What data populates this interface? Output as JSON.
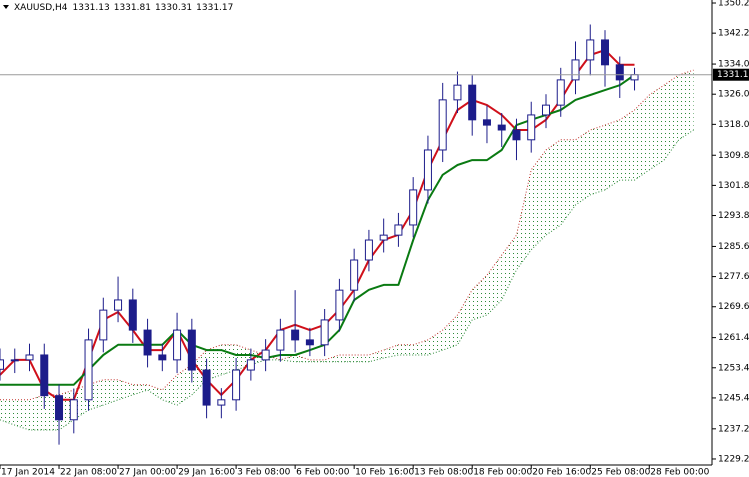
{
  "chart_data": {
    "type": "candlestick",
    "title": "XAUUSD,H4",
    "header_values": [
      1331.13,
      1331.81,
      1330.31,
      1331.17
    ],
    "last_price": 1331.17,
    "xlim": [
      0,
      193
    ],
    "ylim": [
      1227.6,
      1351
    ],
    "yticks": [
      {
        "value": 1350.2,
        "label": "1350.20"
      },
      {
        "value": 1342.2,
        "label": "1342.20"
      },
      {
        "value": 1334,
        "label": "1334.00"
      },
      {
        "value": 1326,
        "label": "1326.00"
      },
      {
        "value": 1318,
        "label": "1318.00"
      },
      {
        "value": 1309.8,
        "label": "1309.80"
      },
      {
        "value": 1301.8,
        "label": "1301.80"
      },
      {
        "value": 1293.8,
        "label": "1293.80"
      },
      {
        "value": 1285.6,
        "label": "1285.60"
      },
      {
        "value": 1277.6,
        "label": "1277.60"
      },
      {
        "value": 1269.6,
        "label": "1269.60"
      },
      {
        "value": 1261.4,
        "label": "1261.40"
      },
      {
        "value": 1253.4,
        "label": "1253.40"
      },
      {
        "value": 1245.4,
        "label": "1245.40"
      },
      {
        "value": 1237.2,
        "label": "1237.20"
      },
      {
        "value": 1229.2,
        "label": "1229.20"
      }
    ],
    "xticks": [
      {
        "value": 0,
        "label": "17 Jan 2014"
      },
      {
        "value": 16,
        "label": "22 Jan 08:00"
      },
      {
        "value": 32,
        "label": "27 Jan 00:00"
      },
      {
        "value": 48,
        "label": "29 Jan 16:00"
      },
      {
        "value": 64,
        "label": "3 Feb 08:00"
      },
      {
        "value": 80,
        "label": "6 Feb 00:00"
      },
      {
        "value": 96,
        "label": "10 Feb 16:00"
      },
      {
        "value": 112,
        "label": "13 Feb 08:00"
      },
      {
        "value": 128,
        "label": "18 Feb 00:00"
      },
      {
        "value": 144,
        "label": "20 Feb 16:00"
      },
      {
        "value": 160,
        "label": "25 Feb 08:00"
      },
      {
        "value": 176,
        "label": "28 Feb 00:00"
      }
    ],
    "candles": {
      "color": "#1c1c8a",
      "x": [
        0,
        4,
        8,
        12,
        16,
        20,
        24,
        28,
        32,
        36,
        40,
        44,
        48,
        52,
        56,
        60,
        64,
        68,
        72,
        76,
        80,
        84,
        88,
        92,
        96,
        100,
        104,
        108,
        112,
        116,
        120,
        124,
        128,
        132,
        136,
        140,
        144,
        148,
        152,
        156,
        160,
        164,
        168,
        172
      ],
      "open": [
        1253,
        1255.5,
        1255.5,
        1256.8,
        1246,
        1239.6,
        1244.9,
        1260.8,
        1268.7,
        1271.4,
        1263.4,
        1256.8,
        1255.5,
        1263.4,
        1252.8,
        1243.5,
        1244.9,
        1252.8,
        1255.5,
        1258.1,
        1263.4,
        1260.8,
        1259.5,
        1266.1,
        1274,
        1282,
        1287.3,
        1288.6,
        1291.3,
        1300.6,
        1311.2,
        1324.5,
        1328.4,
        1319.2,
        1317.8,
        1316.5,
        1313.9,
        1320.5,
        1323.1,
        1329.8,
        1335.1,
        1340.4,
        1333.8,
        1329.8
      ],
      "high": [
        1258.5,
        1258.5,
        1259.8,
        1259.8,
        1249,
        1247.9,
        1263.8,
        1272,
        1277.6,
        1274.4,
        1266.4,
        1259.8,
        1268,
        1266.4,
        1255.8,
        1248,
        1256,
        1258.5,
        1261,
        1266.4,
        1274,
        1264,
        1269,
        1277,
        1285,
        1290,
        1293,
        1294.5,
        1304,
        1315,
        1329,
        1332,
        1331,
        1323,
        1321,
        1319.5,
        1324,
        1326,
        1333,
        1340,
        1344.5,
        1343,
        1336,
        1333
      ],
      "low": [
        1250,
        1252,
        1252.5,
        1242.5,
        1233,
        1236,
        1242,
        1257.5,
        1265.5,
        1260,
        1253.5,
        1252.5,
        1252,
        1249.5,
        1240,
        1240,
        1242,
        1250,
        1252.5,
        1255,
        1257.5,
        1256.5,
        1256.5,
        1263,
        1271,
        1279,
        1284,
        1285.5,
        1288,
        1297,
        1308,
        1321,
        1315,
        1313,
        1312,
        1308.5,
        1310.5,
        1317,
        1320,
        1326,
        1331,
        1328,
        1325,
        1327
      ],
      "close": [
        1255.5,
        1255.5,
        1256.8,
        1246,
        1239.6,
        1244.9,
        1260.8,
        1268.7,
        1271.4,
        1263.4,
        1256.8,
        1255.5,
        1263.4,
        1252.8,
        1243.5,
        1244.9,
        1252.8,
        1255.5,
        1258.1,
        1263.4,
        1260.8,
        1259.5,
        1266.1,
        1274,
        1282,
        1287.3,
        1288.6,
        1291.3,
        1300.6,
        1311.2,
        1324.5,
        1328.4,
        1319.2,
        1317.8,
        1316.5,
        1313.9,
        1320.5,
        1323.1,
        1329.8,
        1335.1,
        1340.4,
        1333.8,
        1329.8,
        1331.2
      ]
    },
    "series": [
      {
        "color": "#d0101a",
        "x": [
          0,
          4,
          8,
          12,
          16,
          20,
          24,
          28,
          32,
          36,
          40,
          44,
          48,
          52,
          56,
          60,
          64,
          68,
          72,
          76,
          80,
          84,
          88,
          92,
          96,
          100,
          104,
          108,
          112,
          116,
          120,
          124,
          128,
          132,
          136,
          140,
          144,
          148,
          152,
          156,
          160,
          164,
          168,
          172
        ],
        "values": [
          1251.5,
          1255.5,
          1255.5,
          1247.5,
          1244.9,
          1244.9,
          1255.5,
          1266.1,
          1268.2,
          1263.4,
          1258.1,
          1258.1,
          1263.4,
          1255.5,
          1250.2,
          1246.2,
          1250.2,
          1255.5,
          1258.1,
          1263.4,
          1264.8,
          1263.4,
          1264.8,
          1268.8,
          1274.1,
          1282,
          1287.3,
          1288.7,
          1295.3,
          1305.9,
          1313.9,
          1321.8,
          1324.5,
          1323.1,
          1320.5,
          1316.5,
          1316.5,
          1319.2,
          1324.5,
          1331.1,
          1336.4,
          1337.7,
          1333.8,
          1333.8
        ]
      },
      {
        "color": "#0a7a12",
        "x": [
          0,
          4,
          8,
          12,
          16,
          20,
          24,
          28,
          32,
          36,
          40,
          44,
          48,
          52,
          56,
          60,
          64,
          68,
          72,
          76,
          80,
          84,
          88,
          92,
          96,
          100,
          104,
          108,
          112,
          116,
          120,
          124,
          128,
          132,
          136,
          140,
          144,
          148,
          152,
          156,
          160,
          164,
          168,
          172
        ],
        "values": [
          1248.9,
          1248.9,
          1248.9,
          1248.9,
          1248.9,
          1248.9,
          1252.8,
          1256.8,
          1259.5,
          1259.5,
          1259.5,
          1259.5,
          1263.4,
          1259.5,
          1258.1,
          1258.1,
          1256.8,
          1256.8,
          1256,
          1256.8,
          1256.8,
          1258.1,
          1259.5,
          1263.4,
          1271.4,
          1274.1,
          1275.4,
          1275.4,
          1287.3,
          1297.9,
          1304.6,
          1307.2,
          1308.5,
          1308.5,
          1311.2,
          1317.8,
          1319.2,
          1320.5,
          1321.8,
          1324.5,
          1325.8,
          1327.1,
          1328.4,
          1331.1
        ]
      }
    ],
    "cloud": {
      "up_color": "#2e8b3a",
      "down_color": "#c0302a",
      "x": [
        0,
        4,
        8,
        12,
        16,
        20,
        24,
        28,
        32,
        36,
        40,
        44,
        48,
        52,
        56,
        60,
        64,
        68,
        72,
        76,
        80,
        84,
        88,
        92,
        96,
        100,
        104,
        108,
        112,
        116,
        120,
        124,
        128,
        132,
        136,
        140,
        144,
        148,
        152,
        156,
        160,
        164,
        168,
        172,
        176,
        180,
        184,
        188
      ],
      "span_a": [
        1244.9,
        1244.9,
        1244.9,
        1246.2,
        1246.2,
        1247.5,
        1248.9,
        1250.2,
        1250.2,
        1248.9,
        1248.9,
        1247.5,
        1251.5,
        1254.2,
        1258.1,
        1259.5,
        1259.5,
        1258.1,
        1256.8,
        1255.5,
        1256.8,
        1255.5,
        1255.5,
        1256.8,
        1256.8,
        1256.8,
        1258.1,
        1259.5,
        1259.5,
        1260.8,
        1263.4,
        1267.4,
        1274.1,
        1278.0,
        1283.3,
        1288.6,
        1305.9,
        1311.2,
        1313.9,
        1313.9,
        1316.5,
        1317.8,
        1319.2,
        1321.8,
        1325.8,
        1328.4,
        1331.1,
        1332.4
      ],
      "span_b": [
        1239.6,
        1238.2,
        1236.9,
        1236.9,
        1236.9,
        1239.6,
        1242.2,
        1243.5,
        1244.9,
        1246.2,
        1247.5,
        1244.9,
        1243.5,
        1246.2,
        1250.2,
        1251.5,
        1252.8,
        1254.2,
        1255.5,
        1255.5,
        1255.0,
        1255.0,
        1255.0,
        1255.0,
        1255.0,
        1255.0,
        1256.0,
        1256.8,
        1256.8,
        1256.8,
        1258.1,
        1259.5,
        1266.1,
        1267.4,
        1271.4,
        1279.4,
        1284.7,
        1288.6,
        1291.3,
        1296.6,
        1299.3,
        1300.6,
        1303.2,
        1303.2,
        1305.9,
        1308.5,
        1313.9,
        1316.5
      ]
    }
  }
}
